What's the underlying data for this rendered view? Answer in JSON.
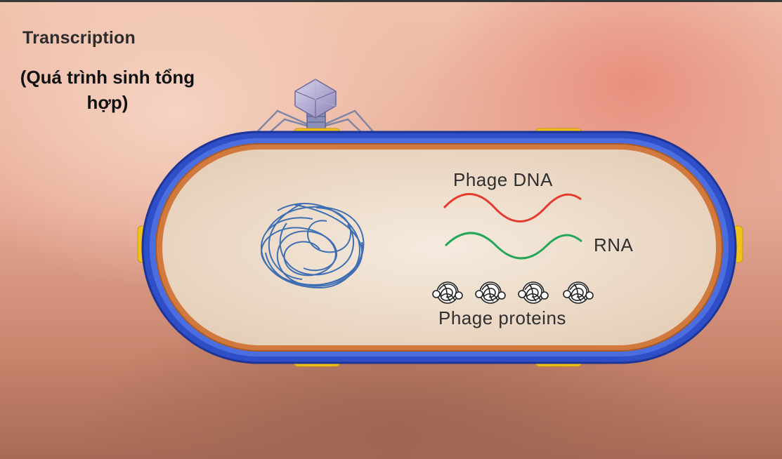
{
  "title": "Transcription",
  "subtitle": "(Quá trình sinh tổng hợp)",
  "labels": {
    "phage_dna": "Phage DNA",
    "rna": "RNA",
    "phage_proteins": "Phage proteins"
  },
  "colors": {
    "cell_wall": "#2f4fc8",
    "membrane": "#c9682f",
    "cytoplasm": "#f1e2d2",
    "dna_strand": "#e53a2e",
    "rna_strand": "#25a659",
    "host_dna": "#3f6fb3",
    "protein": "#222222",
    "attachment_pad": "#f2c21b"
  },
  "protein_count": 4
}
